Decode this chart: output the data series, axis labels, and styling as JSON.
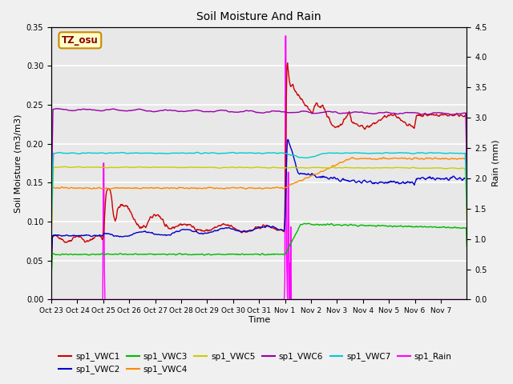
{
  "title": "Soil Moisture And Rain",
  "xlabel": "Time",
  "ylabel_left": "Soil Moisture (m3/m3)",
  "ylabel_right": "Rain (mm)",
  "ylim_left": [
    0.0,
    0.35
  ],
  "ylim_right": [
    0.0,
    4.5
  ],
  "annotation": "TZ_osu",
  "bg_color": "#f0f0f0",
  "plot_bg_color": "#e8e8e8",
  "grid_color": "white",
  "x_tick_labels": [
    "Oct 23",
    "Oct 24",
    "Oct 25",
    "Oct 26",
    "Oct 27",
    "Oct 28",
    "Oct 29",
    "Oct 30",
    "Oct 31",
    "Nov 1",
    "Nov 2",
    "Nov 3",
    "Nov 4",
    "Nov 5",
    "Nov 6",
    "Nov 7"
  ],
  "series_colors": {
    "VWC1": "#cc0000",
    "VWC2": "#0000cc",
    "VWC3": "#00bb00",
    "VWC4": "#ff8800",
    "VWC5": "#cccc00",
    "VWC6": "#9900aa",
    "VWC7": "#00cccc",
    "Rain": "#ff00ff"
  },
  "legend_labels": [
    "sp1_VWC1",
    "sp1_VWC2",
    "sp1_VWC3",
    "sp1_VWC4",
    "sp1_VWC5",
    "sp1_VWC6",
    "sp1_VWC7",
    "sp1_Rain"
  ]
}
